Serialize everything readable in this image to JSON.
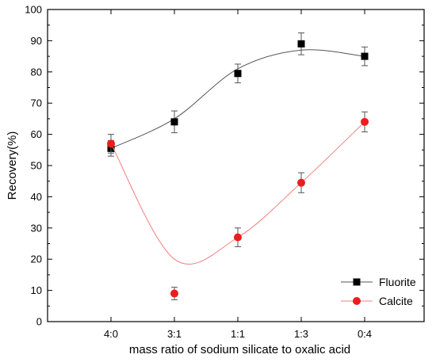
{
  "chart_data": {
    "type": "scatter",
    "categories": [
      "4:0",
      "3:1",
      "1:1",
      "1:3",
      "0:4"
    ],
    "xlabel": "mass ratio of sodium silicate to oxalic acid",
    "ylabel": "Recovery(%)",
    "ylim": [
      0,
      100
    ],
    "yticks": [
      0,
      10,
      20,
      30,
      40,
      50,
      60,
      70,
      80,
      90,
      100
    ],
    "grid": false,
    "legend_position": "bottom-right",
    "series": [
      {
        "name": "Fluorite",
        "marker": "square",
        "color": "#000000",
        "line_color": "#555555",
        "values": [
          55.5,
          64,
          79.5,
          89,
          85
        ],
        "errors": [
          2.5,
          3.5,
          3,
          3.5,
          3
        ],
        "fit_curve": [
          55.5,
          65,
          81,
          87,
          85
        ]
      },
      {
        "name": "Calcite",
        "marker": "circle",
        "color": "#ee1c1c",
        "line_color": "#f08080",
        "values": [
          57,
          9,
          27,
          44.5,
          64
        ],
        "errors": [
          3,
          2,
          3,
          3.2,
          3.2
        ],
        "fit_curve": [
          57,
          20,
          27,
          44.5,
          64
        ]
      }
    ]
  }
}
